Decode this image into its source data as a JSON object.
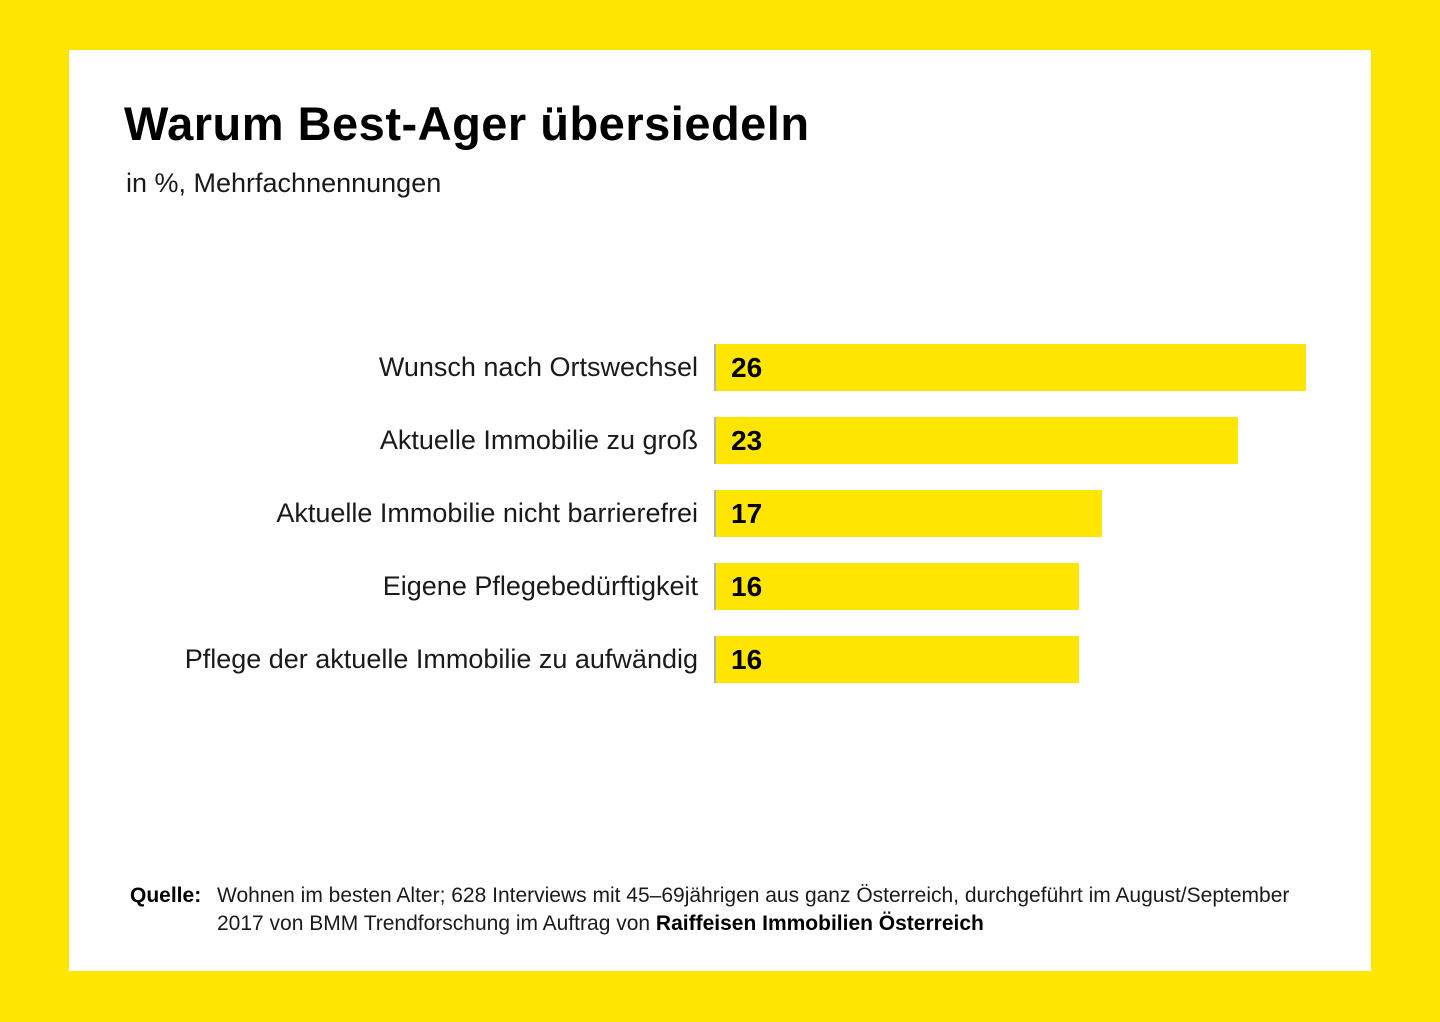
{
  "page": {
    "background_color": "#FFE500",
    "card_color": "#FFFFFF",
    "axis_line_color": "#B3B3B3"
  },
  "header": {
    "title": "Warum Best-Ager übersiedeln",
    "subtitle": "in %, Mehrfachnennungen"
  },
  "chart_data": {
    "type": "bar",
    "orientation": "horizontal",
    "title": "Warum Best-Ager übersiedeln",
    "subtitle": "in %, Mehrfachnennungen",
    "unit": "%",
    "categories": [
      "Wunsch nach Ortswechsel",
      "Aktuelle Immobilie zu groß",
      "Aktuelle Immobilie nicht barrierefrei",
      "Eigene Pflegebedürftigkeit",
      "Pflege der aktuelle Immobilie zu aufwändig"
    ],
    "values": [
      26,
      23,
      17,
      16,
      16
    ],
    "xlim": [
      0,
      26
    ],
    "bar_color": "#FFE500",
    "value_labels_shown": true,
    "grid": false,
    "legend": false
  },
  "source": {
    "label": "Quelle:",
    "line1": "Wohnen im besten Alter; 628 Interviews mit 45–69jährigen aus ganz Österreich, durchgeführt im August/September",
    "line2_prefix": "2017 von BMM Trendforschung im Auftrag von ",
    "line2_bold": "Raiffeisen Immobilien Österreich"
  }
}
